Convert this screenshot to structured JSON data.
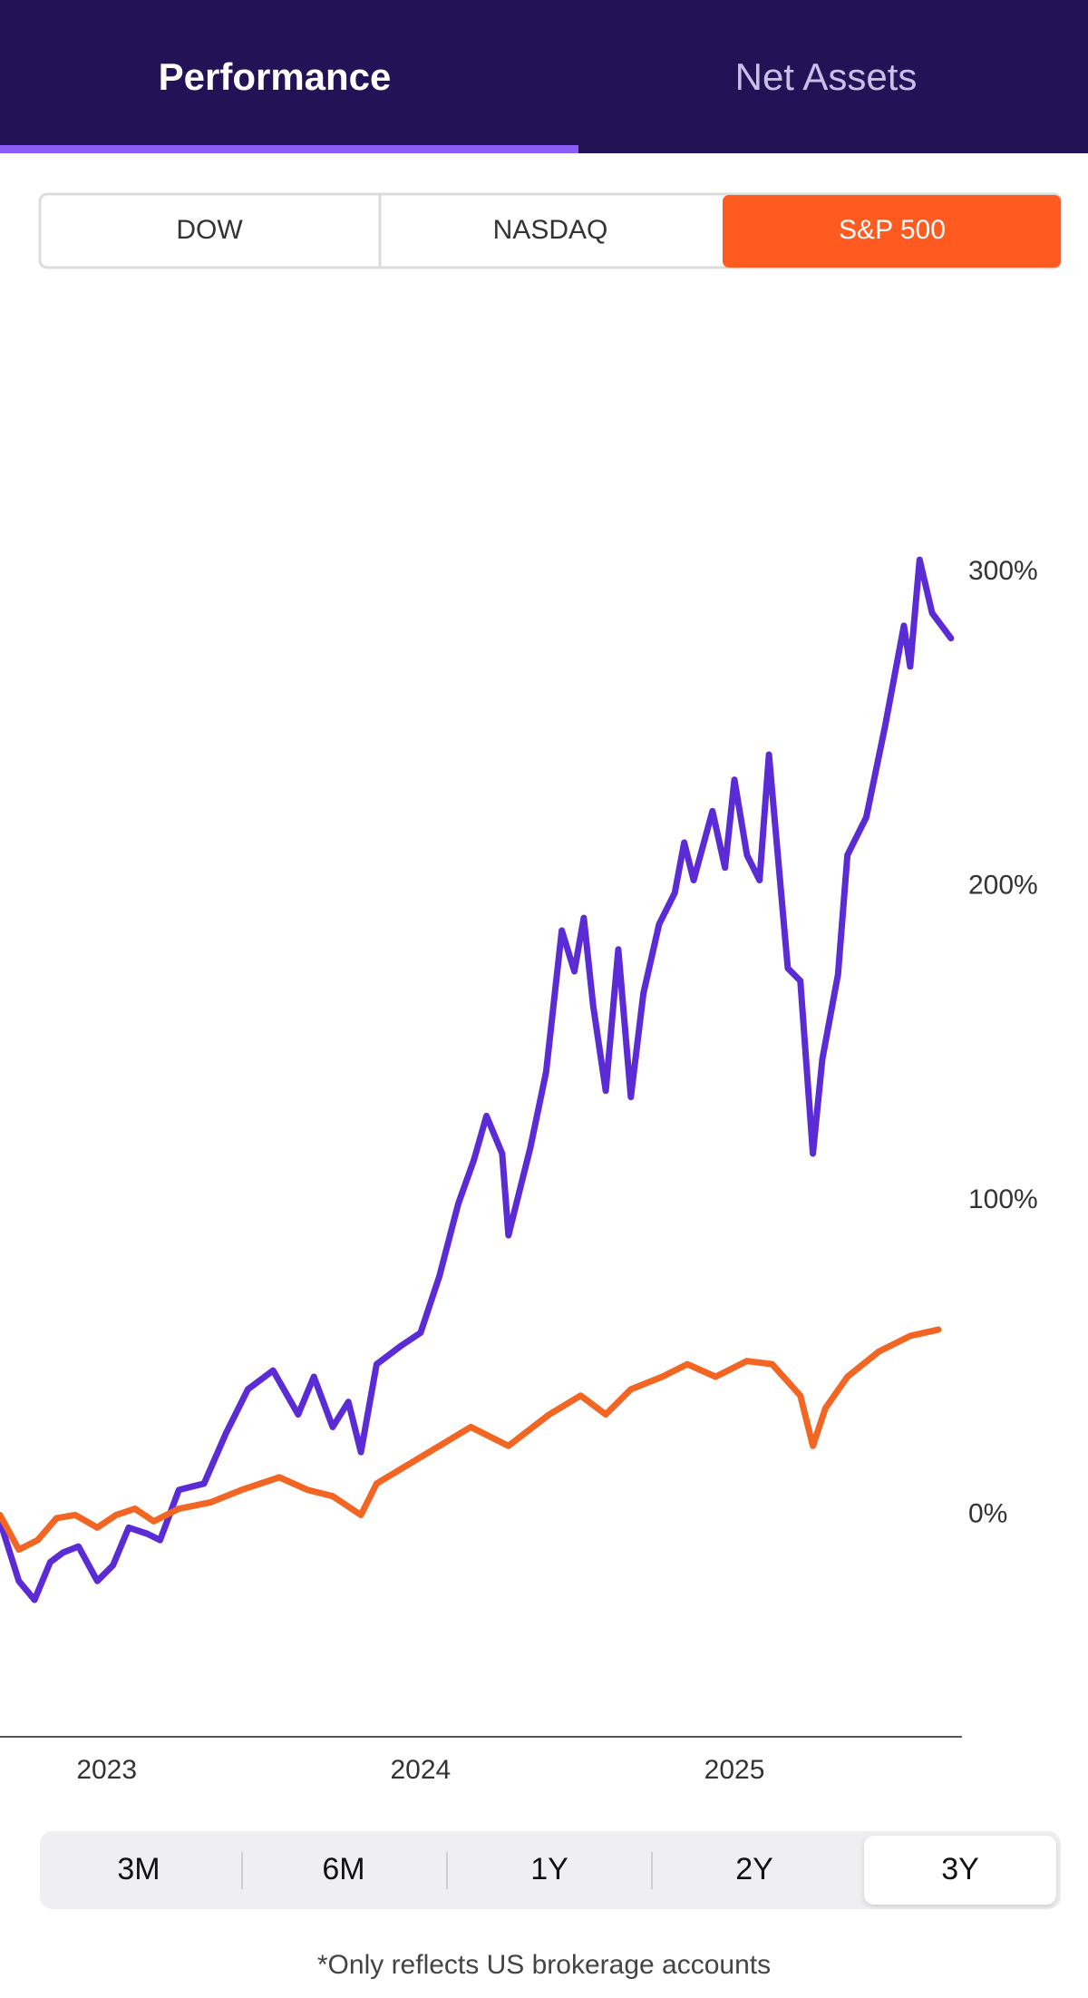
{
  "header": {
    "tabs": [
      "Performance",
      "Net Assets"
    ]
  },
  "index_selector": {
    "options": [
      "DOW",
      "NASDAQ",
      "S&P 500"
    ]
  },
  "chart_data": {
    "type": "line",
    "xlim": [
      2022.66,
      2025.725
    ],
    "xticks": [
      2023,
      2024,
      2025
    ],
    "ylim": [
      -70,
      400
    ],
    "yticks": [
      {
        "value": 0,
        "label": "0%"
      },
      {
        "value": 100,
        "label": "100%"
      },
      {
        "value": 200,
        "label": "200%"
      },
      {
        "value": 300,
        "label": "300%"
      }
    ],
    "grid": false,
    "series": [
      {
        "color": "#5b2bd6",
        "x": [
          2022.66,
          2022.72,
          2022.77,
          2022.82,
          2022.86,
          2022.91,
          2022.97,
          2023.02,
          2023.07,
          2023.13,
          2023.17,
          2023.23,
          2023.31,
          2023.38,
          2023.45,
          2023.53,
          2023.61,
          2023.66,
          2023.72,
          2023.77,
          2023.81,
          2023.86,
          2023.94,
          2024.0,
          2024.06,
          2024.12,
          2024.17,
          2024.21,
          2024.26,
          2024.28,
          2024.35,
          2024.4,
          2024.45,
          2024.49,
          2024.52,
          2024.55,
          2024.59,
          2024.63,
          2024.67,
          2024.71,
          2024.76,
          2024.81,
          2024.84,
          2024.87,
          2024.93,
          2024.97,
          2025.0,
          2025.04,
          2025.08,
          2025.11,
          2025.17,
          2025.21,
          2025.25,
          2025.28,
          2025.33,
          2025.36,
          2025.42,
          2025.48,
          2025.54,
          2025.56,
          2025.59,
          2025.63,
          2025.69
        ],
        "values": [
          -2,
          -21,
          -27,
          -15,
          -12,
          -10,
          -21,
          -16,
          -4,
          -6,
          -8,
          8,
          10,
          26,
          40,
          46,
          32,
          44,
          28,
          36,
          20,
          48,
          54,
          58,
          76,
          99,
          113,
          127,
          115,
          89,
          117,
          141,
          186,
          173,
          190,
          162,
          135,
          180,
          133,
          166,
          188,
          198,
          214,
          202,
          224,
          206,
          234,
          210,
          202,
          242,
          174,
          170,
          115,
          145,
          172,
          210,
          222,
          251,
          283,
          270,
          304,
          287,
          279
        ]
      },
      {
        "color": "#f26522",
        "x": [
          2022.66,
          2022.72,
          2022.78,
          2022.84,
          2022.9,
          2022.97,
          2023.03,
          2023.09,
          2023.15,
          2023.23,
          2023.33,
          2023.43,
          2023.55,
          2023.64,
          2023.72,
          2023.81,
          2023.86,
          2023.96,
          2024.06,
          2024.16,
          2024.28,
          2024.41,
          2024.51,
          2024.59,
          2024.67,
          2024.77,
          2024.85,
          2024.94,
          2025.04,
          2025.12,
          2025.21,
          2025.25,
          2025.29,
          2025.36,
          2025.46,
          2025.56,
          2025.65
        ],
        "values": [
          0,
          -11,
          -8,
          -1,
          0,
          -4,
          0,
          2,
          -2,
          2,
          4,
          8,
          12,
          8,
          6,
          0,
          10,
          16,
          22,
          28,
          22,
          32,
          38,
          32,
          40,
          44,
          48,
          44,
          49,
          48,
          38,
          22,
          34,
          44,
          52,
          57,
          59
        ]
      }
    ]
  },
  "range_selector": {
    "options": [
      "3M",
      "6M",
      "1Y",
      "2Y",
      "3Y"
    ]
  },
  "footnote": "*Only reflects US brokerage accounts"
}
